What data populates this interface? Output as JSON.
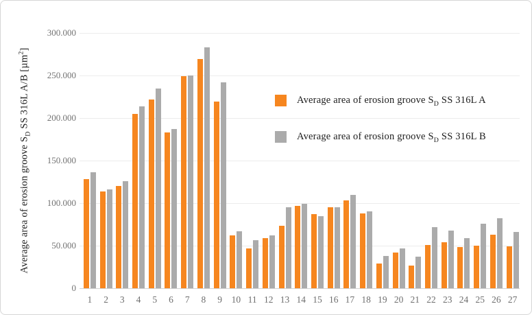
{
  "axis": {
    "y_title": {
      "pre": "Average area of erosion groove S",
      "sub": "D",
      "mid": " SS 316L A/B [µm",
      "sup": "2",
      "post": "]"
    }
  },
  "legend": {
    "items": [
      {
        "pre": "Average area of erosion groove S",
        "sub": "D",
        "post": " SS 316L A",
        "color": "#F6861F"
      },
      {
        "pre": "Average area of erosion groove S",
        "sub": "D",
        "post": " SS 316L B",
        "color": "#ABABAB"
      }
    ]
  },
  "chart_data": {
    "type": "bar",
    "title": "",
    "xlabel": "",
    "ylabel": "Average area of erosion groove SD SS 316L A/B [µm²]",
    "ylim": [
      0,
      300000
    ],
    "grid": true,
    "legend_position": "right-inside",
    "categories": [
      1,
      2,
      3,
      4,
      5,
      6,
      7,
      8,
      9,
      10,
      11,
      12,
      13,
      14,
      15,
      16,
      17,
      18,
      19,
      20,
      21,
      22,
      23,
      24,
      25,
      26,
      27
    ],
    "yticks": [
      {
        "label": "0",
        "value": 0
      },
      {
        "label": "50.000",
        "value": 50000
      },
      {
        "label": "100.000",
        "value": 100000
      },
      {
        "label": "150.000",
        "value": 150000
      },
      {
        "label": "200.000",
        "value": 200000
      },
      {
        "label": "250.000",
        "value": 250000
      },
      {
        "label": "300.000",
        "value": 300000
      }
    ],
    "series": [
      {
        "name": "Average area of erosion groove SD SS 316L A",
        "color": "#F6861F",
        "values": [
          128000,
          114000,
          120000,
          205000,
          222000,
          183000,
          249000,
          269000,
          219000,
          62500,
          46500,
          59000,
          73000,
          97000,
          87000,
          95000,
          103000,
          88000,
          29000,
          42000,
          27000,
          51000,
          54000,
          48000,
          50000,
          63000,
          49500
        ]
      },
      {
        "name": "Average area of erosion groove SD SS 316L B",
        "color": "#ABABAB",
        "values": [
          136000,
          116000,
          126000,
          214000,
          235000,
          187000,
          250000,
          283000,
          242000,
          67000,
          56500,
          62000,
          95000,
          99500,
          85000,
          95500,
          109500,
          90500,
          38000,
          47000,
          37500,
          72000,
          68000,
          59000,
          76000,
          82000,
          66000
        ]
      }
    ]
  }
}
